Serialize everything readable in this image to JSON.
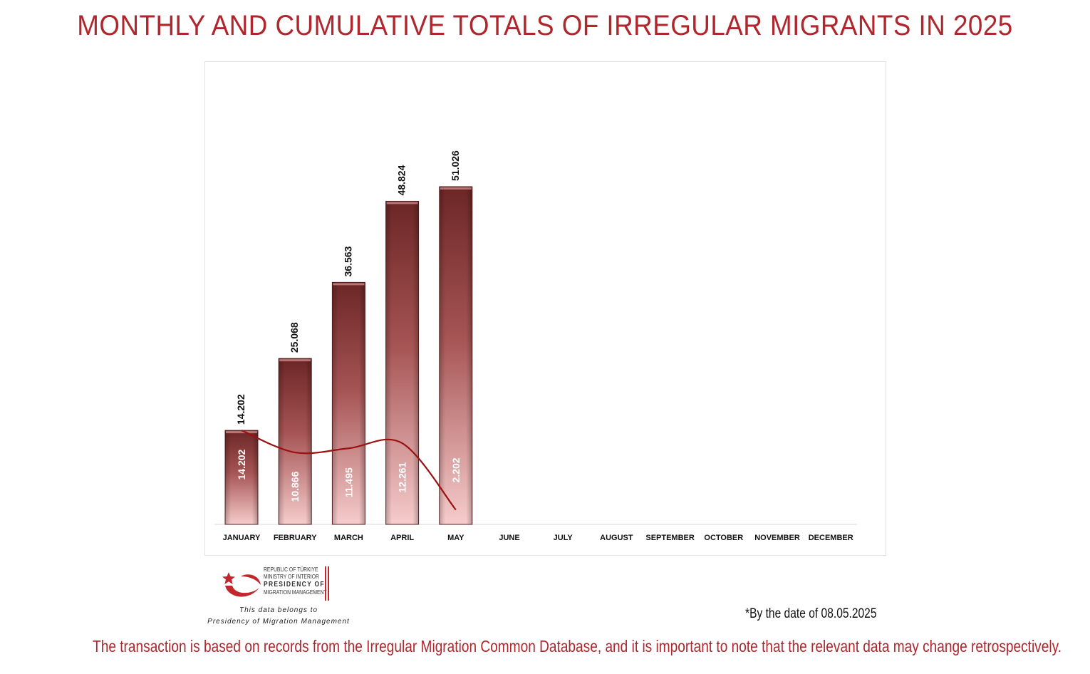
{
  "title": "MONTHLY AND CUMULATIVE TOTALS OF IRREGULAR MIGRANTS IN 2025",
  "date_note": "*By the date of 08.05.2025",
  "footer_note": "The transaction is based on records from the Irregular Migration Common Database, and it is important to note that the relevant data may change retrospectively.",
  "logo": {
    "line1": "REPUBLIC OF TÜRKIYE",
    "line2": "MINISTRY OF INTERIOR",
    "line3": "PRESIDENCY OF",
    "line4": "MIGRATION MANAGEMENT",
    "caption1": "This data belongs to",
    "caption2": "Presidency of Migration Management",
    "icon": "crescent-star-icon"
  },
  "colors": {
    "accent": "#b0262d",
    "bar_top": "#6e2a2a",
    "bar_bottom": "#f2c4c4",
    "line": "#9b1111"
  },
  "chart_data": {
    "type": "bar",
    "categories": [
      "JANUARY",
      "FEBRUARY",
      "MARCH",
      "APRIL",
      "MAY",
      "JUNE",
      "JULY",
      "AUGUST",
      "SEPTEMBER",
      "OCTOBER",
      "NOVEMBER",
      "DECEMBER"
    ],
    "series": [
      {
        "type": "bar",
        "values": [
          14202,
          25068,
          36563,
          48824,
          51026,
          null,
          null,
          null,
          null,
          null,
          null,
          null
        ],
        "labels": [
          "14.202",
          "25.068",
          "36.563",
          "48.824",
          "51.026"
        ]
      },
      {
        "type": "line",
        "values": [
          14202,
          10866,
          11495,
          12261,
          2202,
          null,
          null,
          null,
          null,
          null,
          null,
          null
        ],
        "labels": [
          "14.202",
          "10.866",
          "11.495",
          "12.261",
          "2.202"
        ]
      }
    ],
    "ylim": [
      0,
      51026
    ],
    "grid": false,
    "legend": "none"
  }
}
